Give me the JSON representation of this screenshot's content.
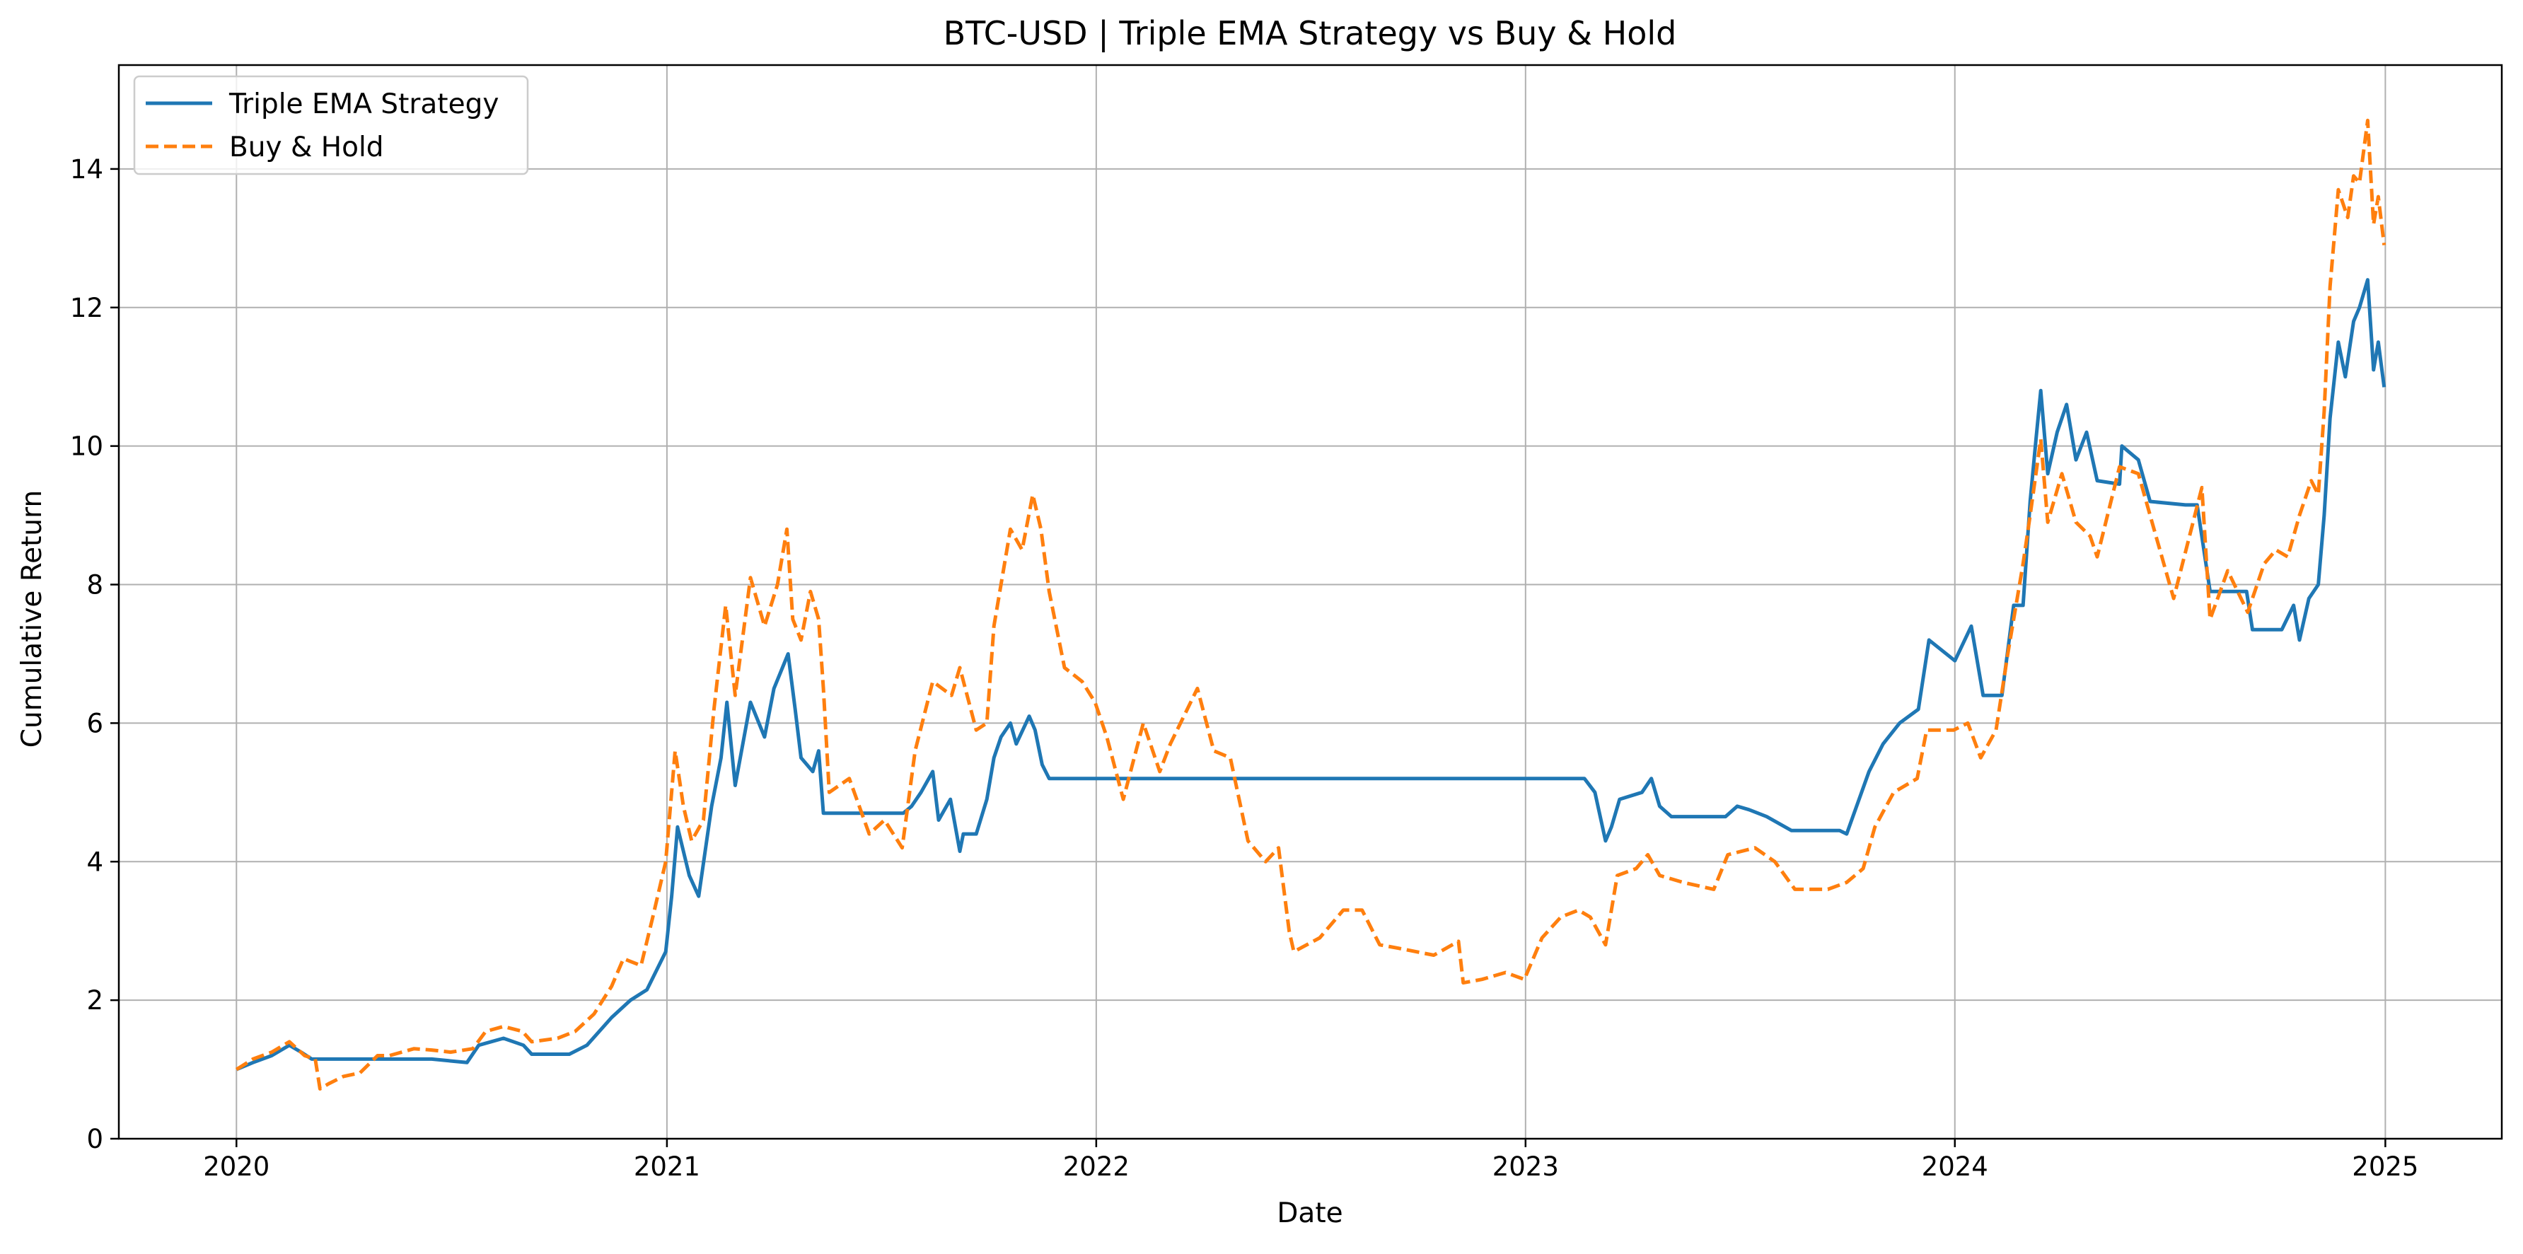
{
  "chart_data": {
    "type": "line",
    "title": "BTC-USD | Triple EMA Strategy vs Buy & Hold",
    "xlabel": "Date",
    "ylabel": "Cumulative Return",
    "xlim": [
      "2019-09-23",
      "2025-04-10"
    ],
    "ylim": [
      0,
      15.5
    ],
    "x_ticks": [
      "2020",
      "2021",
      "2022",
      "2023",
      "2024",
      "2025"
    ],
    "y_ticks": [
      0,
      2,
      4,
      6,
      8,
      10,
      12,
      14
    ],
    "grid": true,
    "legend_position": "upper-left",
    "series": [
      {
        "name": "Triple EMA Strategy",
        "color": "#1f77b4",
        "style": "solid",
        "points": [
          [
            "2020-01-01",
            1.0
          ],
          [
            "2020-01-15",
            1.1
          ],
          [
            "2020-01-31",
            1.2
          ],
          [
            "2020-02-15",
            1.35
          ],
          [
            "2020-02-25",
            1.25
          ],
          [
            "2020-03-05",
            1.15
          ],
          [
            "2020-04-15",
            1.15
          ],
          [
            "2020-05-10",
            1.15
          ],
          [
            "2020-06-15",
            1.15
          ],
          [
            "2020-07-15",
            1.1
          ],
          [
            "2020-07-25",
            1.35
          ],
          [
            "2020-08-15",
            1.45
          ],
          [
            "2020-09-01",
            1.35
          ],
          [
            "2020-09-08",
            1.22
          ],
          [
            "2020-10-10",
            1.22
          ],
          [
            "2020-10-25",
            1.35
          ],
          [
            "2020-11-15",
            1.75
          ],
          [
            "2020-12-01",
            2.0
          ],
          [
            "2020-12-15",
            2.15
          ],
          [
            "2020-12-31",
            2.7
          ],
          [
            "2021-01-05",
            3.5
          ],
          [
            "2021-01-10",
            4.5
          ],
          [
            "2021-01-20",
            3.8
          ],
          [
            "2021-01-28",
            3.5
          ],
          [
            "2021-02-08",
            4.8
          ],
          [
            "2021-02-16",
            5.5
          ],
          [
            "2021-02-21",
            6.3
          ],
          [
            "2021-02-28",
            5.1
          ],
          [
            "2021-03-13",
            6.3
          ],
          [
            "2021-03-25",
            5.8
          ],
          [
            "2021-04-02",
            6.5
          ],
          [
            "2021-04-14",
            7.0
          ],
          [
            "2021-04-20",
            6.2
          ],
          [
            "2021-04-25",
            5.5
          ],
          [
            "2021-05-05",
            5.3
          ],
          [
            "2021-05-10",
            5.6
          ],
          [
            "2021-05-14",
            4.7
          ],
          [
            "2021-06-15",
            4.7
          ],
          [
            "2021-07-21",
            4.7
          ],
          [
            "2021-07-28",
            4.8
          ],
          [
            "2021-08-05",
            5.0
          ],
          [
            "2021-08-15",
            5.3
          ],
          [
            "2021-08-20",
            4.6
          ],
          [
            "2021-08-30",
            4.9
          ],
          [
            "2021-09-07",
            4.15
          ],
          [
            "2021-09-10",
            4.4
          ],
          [
            "2021-09-21",
            4.4
          ],
          [
            "2021-09-30",
            4.9
          ],
          [
            "2021-10-06",
            5.5
          ],
          [
            "2021-10-12",
            5.8
          ],
          [
            "2021-10-20",
            6.0
          ],
          [
            "2021-10-25",
            5.7
          ],
          [
            "2021-11-05",
            6.1
          ],
          [
            "2021-11-10",
            5.9
          ],
          [
            "2021-11-16",
            5.4
          ],
          [
            "2021-11-22",
            5.2
          ],
          [
            "2022-01-01",
            5.2
          ],
          [
            "2022-06-01",
            5.2
          ],
          [
            "2022-12-01",
            5.2
          ],
          [
            "2023-02-20",
            5.2
          ],
          [
            "2023-03-01",
            5.0
          ],
          [
            "2023-03-10",
            4.3
          ],
          [
            "2023-03-15",
            4.5
          ],
          [
            "2023-03-22",
            4.9
          ],
          [
            "2023-04-10",
            5.0
          ],
          [
            "2023-04-18",
            5.2
          ],
          [
            "2023-04-25",
            4.8
          ],
          [
            "2023-05-05",
            4.65
          ],
          [
            "2023-06-20",
            4.65
          ],
          [
            "2023-06-30",
            4.8
          ],
          [
            "2023-07-10",
            4.75
          ],
          [
            "2023-07-25",
            4.65
          ],
          [
            "2023-08-15",
            4.45
          ],
          [
            "2023-09-25",
            4.45
          ],
          [
            "2023-10-01",
            4.4
          ],
          [
            "2023-10-20",
            5.3
          ],
          [
            "2023-11-01",
            5.7
          ],
          [
            "2023-11-15",
            6.0
          ],
          [
            "2023-12-01",
            6.2
          ],
          [
            "2023-12-10",
            7.2
          ],
          [
            "2024-01-01",
            6.9
          ],
          [
            "2024-01-15",
            7.4
          ],
          [
            "2024-01-25",
            6.4
          ],
          [
            "2024-02-10",
            6.4
          ],
          [
            "2024-02-20",
            7.7
          ],
          [
            "2024-02-28",
            7.7
          ],
          [
            "2024-03-05",
            9.2
          ],
          [
            "2024-03-10",
            10.1
          ],
          [
            "2024-03-14",
            10.8
          ],
          [
            "2024-03-20",
            9.6
          ],
          [
            "2024-03-28",
            10.2
          ],
          [
            "2024-04-05",
            10.6
          ],
          [
            "2024-04-13",
            9.8
          ],
          [
            "2024-04-22",
            10.2
          ],
          [
            "2024-05-01",
            9.5
          ],
          [
            "2024-05-20",
            9.45
          ],
          [
            "2024-05-22",
            10.0
          ],
          [
            "2024-06-05",
            9.8
          ],
          [
            "2024-06-15",
            9.2
          ],
          [
            "2024-07-15",
            9.15
          ],
          [
            "2024-07-25",
            9.15
          ],
          [
            "2024-08-05",
            7.9
          ],
          [
            "2024-09-05",
            7.9
          ],
          [
            "2024-09-10",
            7.35
          ],
          [
            "2024-10-05",
            7.35
          ],
          [
            "2024-10-15",
            7.7
          ],
          [
            "2024-10-20",
            7.2
          ],
          [
            "2024-10-28",
            7.8
          ],
          [
            "2024-11-05",
            8.0
          ],
          [
            "2024-11-10",
            9.0
          ],
          [
            "2024-11-15",
            10.4
          ],
          [
            "2024-11-22",
            11.5
          ],
          [
            "2024-11-28",
            11.0
          ],
          [
            "2024-12-05",
            11.8
          ],
          [
            "2024-12-10",
            12.0
          ],
          [
            "2024-12-17",
            12.4
          ],
          [
            "2024-12-22",
            11.1
          ],
          [
            "2024-12-26",
            11.5
          ],
          [
            "2024-12-31",
            10.85
          ]
        ]
      },
      {
        "name": "Buy & Hold",
        "color": "#ff7f0e",
        "style": "dashed",
        "points": [
          [
            "2020-01-01",
            1.0
          ],
          [
            "2020-01-15",
            1.15
          ],
          [
            "2020-01-31",
            1.25
          ],
          [
            "2020-02-15",
            1.4
          ],
          [
            "2020-02-28",
            1.2
          ],
          [
            "2020-03-08",
            1.15
          ],
          [
            "2020-03-12",
            0.72
          ],
          [
            "2020-03-20",
            0.8
          ],
          [
            "2020-04-01",
            0.9
          ],
          [
            "2020-04-15",
            0.95
          ],
          [
            "2020-04-30",
            1.2
          ],
          [
            "2020-05-10",
            1.2
          ],
          [
            "2020-05-31",
            1.3
          ],
          [
            "2020-06-15",
            1.28
          ],
          [
            "2020-07-01",
            1.25
          ],
          [
            "2020-07-20",
            1.3
          ],
          [
            "2020-07-31",
            1.55
          ],
          [
            "2020-08-15",
            1.62
          ],
          [
            "2020-08-31",
            1.55
          ],
          [
            "2020-09-08",
            1.4
          ],
          [
            "2020-09-30",
            1.45
          ],
          [
            "2020-10-15",
            1.55
          ],
          [
            "2020-10-31",
            1.8
          ],
          [
            "2020-11-15",
            2.2
          ],
          [
            "2020-11-25",
            2.6
          ],
          [
            "2020-12-10",
            2.5
          ],
          [
            "2020-12-20",
            3.2
          ],
          [
            "2020-12-31",
            4.0
          ],
          [
            "2021-01-08",
            5.6
          ],
          [
            "2021-01-15",
            4.8
          ],
          [
            "2021-01-22",
            4.3
          ],
          [
            "2021-02-01",
            4.6
          ],
          [
            "2021-02-10",
            6.2
          ],
          [
            "2021-02-20",
            7.7
          ],
          [
            "2021-02-28",
            6.4
          ],
          [
            "2021-03-13",
            8.1
          ],
          [
            "2021-03-25",
            7.4
          ],
          [
            "2021-04-05",
            8.0
          ],
          [
            "2021-04-13",
            8.8
          ],
          [
            "2021-04-18",
            7.5
          ],
          [
            "2021-04-25",
            7.2
          ],
          [
            "2021-05-03",
            7.9
          ],
          [
            "2021-05-10",
            7.5
          ],
          [
            "2021-05-14",
            6.5
          ],
          [
            "2021-05-19",
            5.0
          ],
          [
            "2021-06-05",
            5.2
          ],
          [
            "2021-06-22",
            4.4
          ],
          [
            "2021-07-05",
            4.6
          ],
          [
            "2021-07-20",
            4.2
          ],
          [
            "2021-07-31",
            5.6
          ],
          [
            "2021-08-15",
            6.6
          ],
          [
            "2021-08-31",
            6.4
          ],
          [
            "2021-09-07",
            6.8
          ],
          [
            "2021-09-21",
            5.9
          ],
          [
            "2021-09-30",
            6.0
          ],
          [
            "2021-10-06",
            7.4
          ],
          [
            "2021-10-20",
            8.8
          ],
          [
            "2021-10-30",
            8.5
          ],
          [
            "2021-11-08",
            9.3
          ],
          [
            "2021-11-15",
            8.8
          ],
          [
            "2021-11-22",
            7.9
          ],
          [
            "2021-12-05",
            6.8
          ],
          [
            "2021-12-20",
            6.6
          ],
          [
            "2021-12-31",
            6.3
          ],
          [
            "2022-01-10",
            5.8
          ],
          [
            "2022-01-24",
            4.9
          ],
          [
            "2022-02-10",
            6.0
          ],
          [
            "2022-02-24",
            5.3
          ],
          [
            "2022-03-05",
            5.7
          ],
          [
            "2022-03-28",
            6.5
          ],
          [
            "2022-04-11",
            5.6
          ],
          [
            "2022-04-25",
            5.5
          ],
          [
            "2022-05-10",
            4.3
          ],
          [
            "2022-05-25",
            4.0
          ],
          [
            "2022-06-05",
            4.2
          ],
          [
            "2022-06-14",
            3.0
          ],
          [
            "2022-06-18",
            2.7
          ],
          [
            "2022-07-10",
            2.9
          ],
          [
            "2022-07-30",
            3.3
          ],
          [
            "2022-08-15",
            3.3
          ],
          [
            "2022-08-30",
            2.8
          ],
          [
            "2022-09-15",
            2.75
          ],
          [
            "2022-10-15",
            2.65
          ],
          [
            "2022-11-05",
            2.85
          ],
          [
            "2022-11-09",
            2.25
          ],
          [
            "2022-11-25",
            2.3
          ],
          [
            "2022-12-15",
            2.4
          ],
          [
            "2022-12-31",
            2.3
          ],
          [
            "2023-01-15",
            2.9
          ],
          [
            "2023-01-31",
            3.2
          ],
          [
            "2023-02-15",
            3.3
          ],
          [
            "2023-02-25",
            3.2
          ],
          [
            "2023-03-10",
            2.8
          ],
          [
            "2023-03-20",
            3.8
          ],
          [
            "2023-04-05",
            3.9
          ],
          [
            "2023-04-15",
            4.1
          ],
          [
            "2023-04-25",
            3.8
          ],
          [
            "2023-05-15",
            3.7
          ],
          [
            "2023-06-10",
            3.6
          ],
          [
            "2023-06-22",
            4.1
          ],
          [
            "2023-07-15",
            4.2
          ],
          [
            "2023-08-01",
            4.0
          ],
          [
            "2023-08-18",
            3.6
          ],
          [
            "2023-09-15",
            3.6
          ],
          [
            "2023-10-01",
            3.7
          ],
          [
            "2023-10-15",
            3.9
          ],
          [
            "2023-10-25",
            4.5
          ],
          [
            "2023-11-10",
            5.0
          ],
          [
            "2023-11-30",
            5.2
          ],
          [
            "2023-12-08",
            5.9
          ],
          [
            "2023-12-31",
            5.9
          ],
          [
            "2024-01-12",
            6.0
          ],
          [
            "2024-01-23",
            5.5
          ],
          [
            "2024-02-05",
            5.9
          ],
          [
            "2024-02-15",
            7.0
          ],
          [
            "2024-02-28",
            8.3
          ],
          [
            "2024-03-05",
            9.0
          ],
          [
            "2024-03-14",
            10.1
          ],
          [
            "2024-03-20",
            8.9
          ],
          [
            "2024-04-01",
            9.6
          ],
          [
            "2024-04-13",
            8.9
          ],
          [
            "2024-04-25",
            8.7
          ],
          [
            "2024-05-01",
            8.4
          ],
          [
            "2024-05-20",
            9.7
          ],
          [
            "2024-06-05",
            9.6
          ],
          [
            "2024-06-20",
            8.7
          ],
          [
            "2024-07-05",
            7.8
          ],
          [
            "2024-07-20",
            8.8
          ],
          [
            "2024-07-29",
            9.4
          ],
          [
            "2024-08-05",
            7.5
          ],
          [
            "2024-08-20",
            8.2
          ],
          [
            "2024-09-06",
            7.6
          ],
          [
            "2024-09-20",
            8.3
          ],
          [
            "2024-09-30",
            8.5
          ],
          [
            "2024-10-10",
            8.4
          ],
          [
            "2024-10-20",
            9.0
          ],
          [
            "2024-10-30",
            9.5
          ],
          [
            "2024-11-05",
            9.3
          ],
          [
            "2024-11-10",
            10.5
          ],
          [
            "2024-11-15",
            12.3
          ],
          [
            "2024-11-22",
            13.7
          ],
          [
            "2024-11-30",
            13.3
          ],
          [
            "2024-12-05",
            13.9
          ],
          [
            "2024-12-10",
            13.8
          ],
          [
            "2024-12-17",
            14.7
          ],
          [
            "2024-12-22",
            13.2
          ],
          [
            "2024-12-26",
            13.6
          ],
          [
            "2024-12-31",
            12.9
          ]
        ]
      }
    ]
  }
}
